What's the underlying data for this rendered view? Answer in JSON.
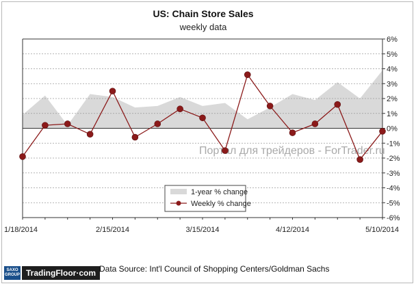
{
  "chart_data": {
    "type": "line",
    "title": "US: Chain Store Sales",
    "subtitle": "weekly data",
    "x": [
      "1/18/2014",
      "1/25/2014",
      "2/1/2014",
      "2/8/2014",
      "2/15/2014",
      "2/22/2014",
      "3/1/2014",
      "3/8/2014",
      "3/15/2014",
      "3/22/2014",
      "3/29/2014",
      "4/5/2014",
      "4/12/2014",
      "4/19/2014",
      "4/26/2014",
      "5/3/2014",
      "5/10/2014"
    ],
    "x_tick_labels": [
      "1/18/2014",
      "2/15/2014",
      "3/15/2014",
      "4/12/2014",
      "5/10/2014"
    ],
    "y_tick_labels": [
      "6%",
      "5%",
      "4%",
      "3%",
      "2%",
      "1%",
      "0%",
      "-1%",
      "-2%",
      "-3%",
      "-4%",
      "-5%",
      "-6%"
    ],
    "ylim": [
      -6,
      6
    ],
    "y_axis_position": "right",
    "grid": "horizontal dashed",
    "series": [
      {
        "name": "1-year % change",
        "style": "area",
        "color": "#d9d9d9",
        "values": [
          0.9,
          2.2,
          0.2,
          2.3,
          2.1,
          1.4,
          1.5,
          2.1,
          1.5,
          1.7,
          0.6,
          1.4,
          2.3,
          1.9,
          3.1,
          2.0,
          3.9
        ]
      },
      {
        "name": "Weekly % change",
        "style": "line-markers",
        "color": "#8b1a1a",
        "values": [
          -1.9,
          0.2,
          0.3,
          -0.4,
          2.5,
          -0.6,
          0.3,
          1.3,
          0.7,
          -1.5,
          3.6,
          1.5,
          -0.3,
          0.3,
          1.6,
          -2.1,
          -0.2
        ]
      }
    ],
    "legend": {
      "position": "bottom-center"
    }
  },
  "watermark": "Портал для трейдеров - ForTrader.ru",
  "source_note": "Data Source:  Int'l Council of Shopping Centers/Goldman Sachs",
  "logo": {
    "mark": "SAXO GROUP",
    "text": "TradingFloor·com"
  },
  "colors": {
    "area": "#d9d9d9",
    "line": "#8b1a1a",
    "grid": "#9a9a9a"
  }
}
